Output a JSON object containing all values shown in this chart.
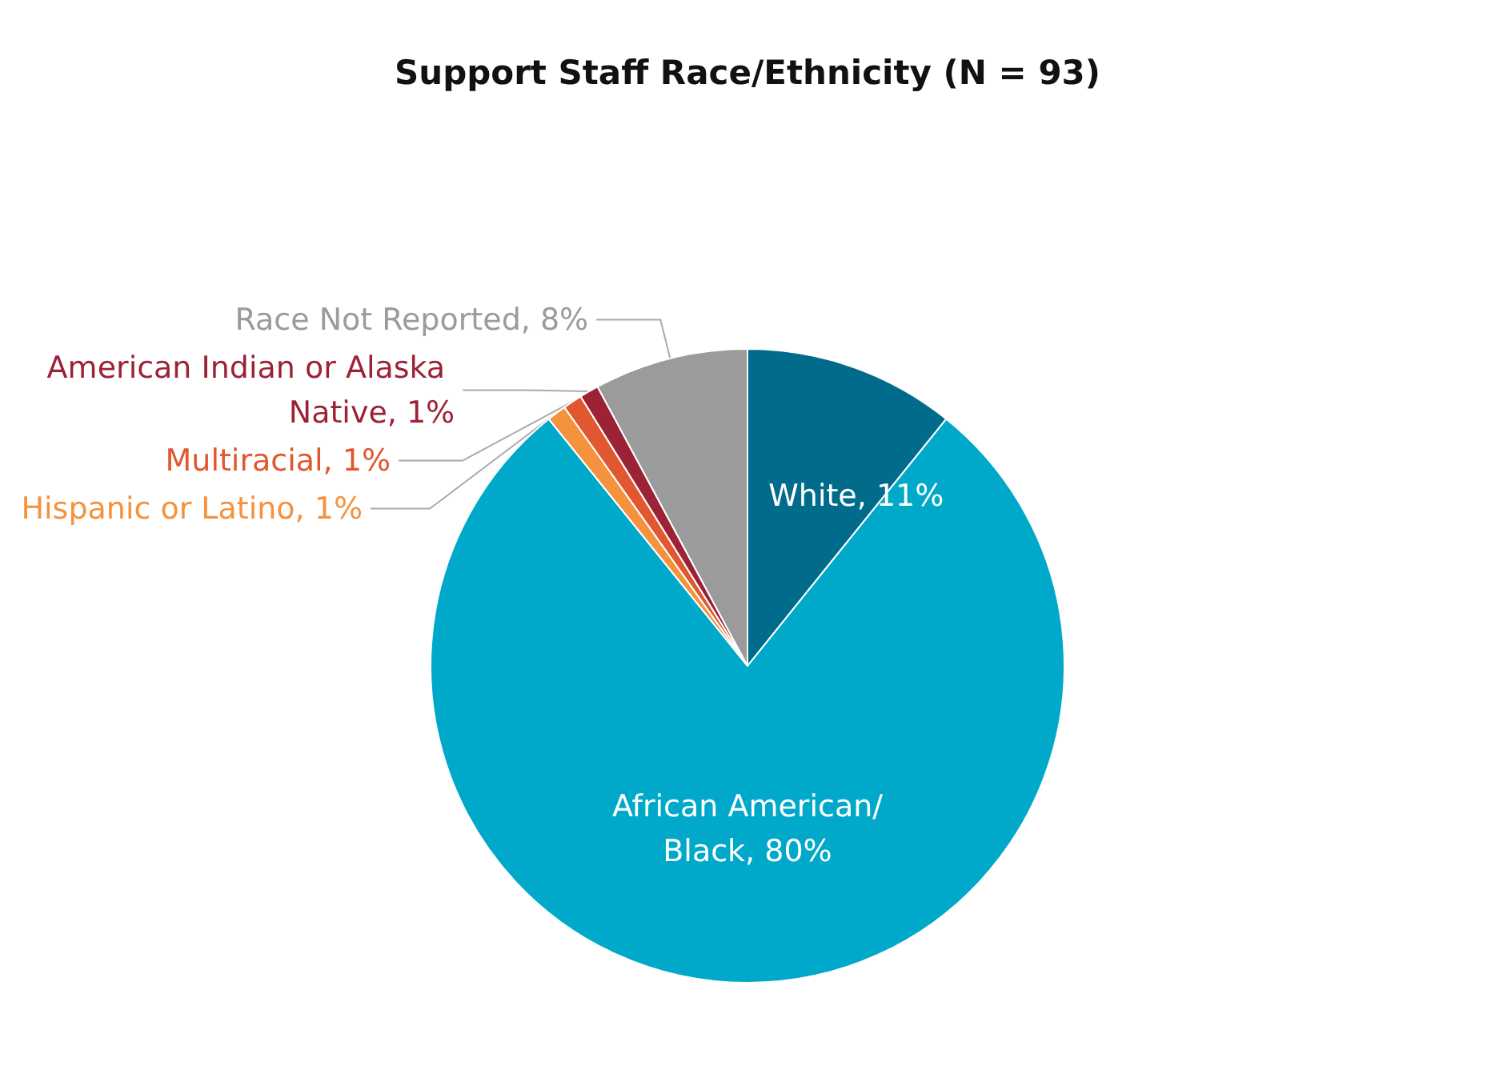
{
  "chart_data": {
    "type": "pie",
    "title": "Support Staff Race/Ethnicity (N = 93)",
    "categories": [
      "White",
      "African American/Black",
      "Hispanic or Latino",
      "Multiracial",
      "American Indian or Alaska Native",
      "Race Not Reported"
    ],
    "values": [
      11,
      80,
      1,
      1,
      1,
      8
    ],
    "value_labels": [
      "11%",
      "80%",
      "1%",
      "1%",
      "1%",
      "8%"
    ],
    "colors": [
      "#006b8b",
      "#00a9c9",
      "#f5923e",
      "#e1572f",
      "#9c2236",
      "#9b9b9c"
    ]
  }
}
